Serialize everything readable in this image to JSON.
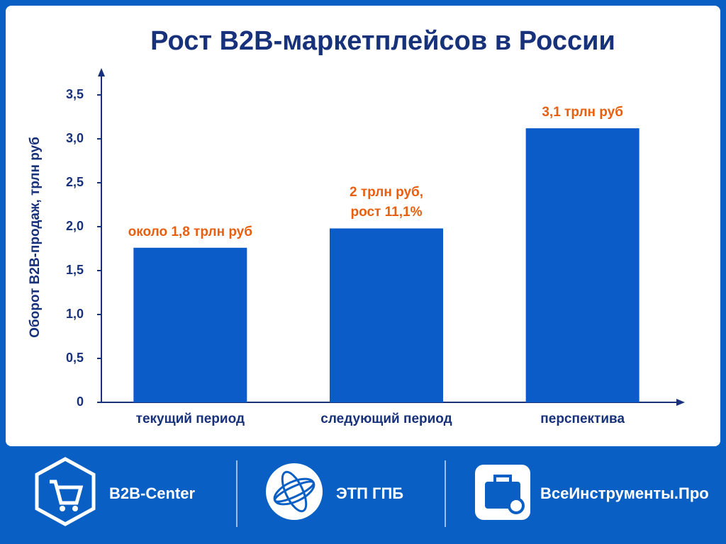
{
  "chart_data": {
    "type": "bar",
    "title": "Рост B2B-маркетплейсов в России",
    "y_label": "Оборот B2B-продаж, трлн руб",
    "categories": [
      "текущий период",
      "следующий период",
      "перспектива"
    ],
    "values": [
      1.76,
      1.98,
      3.12
    ],
    "value_labels": [
      "около 1,8 трлн руб",
      "2 трлн руб,\nрост 11,1%",
      "3,1 трлн руб"
    ],
    "color": "#0b5cc9",
    "label_color": "#e8600f",
    "ylim": [
      0,
      3.8
    ],
    "yticks": [
      0,
      {
        "value": 0.5,
        "label": "0,5"
      },
      {
        "value": 1.0,
        "label": "1,0"
      },
      {
        "value": 1.5,
        "label": "1,5"
      },
      {
        "value": 2.0,
        "label": "2,0"
      },
      {
        "value": 2.5,
        "label": "2,5"
      },
      {
        "value": 3.0,
        "label": "3,0"
      },
      {
        "value": 3.5,
        "label": "3,5"
      }
    ],
    "grid": false
  },
  "footer": {
    "logos": [
      "B2B-Center",
      "ЭТП ГПБ",
      "ВсеИнструменты.Про"
    ]
  }
}
